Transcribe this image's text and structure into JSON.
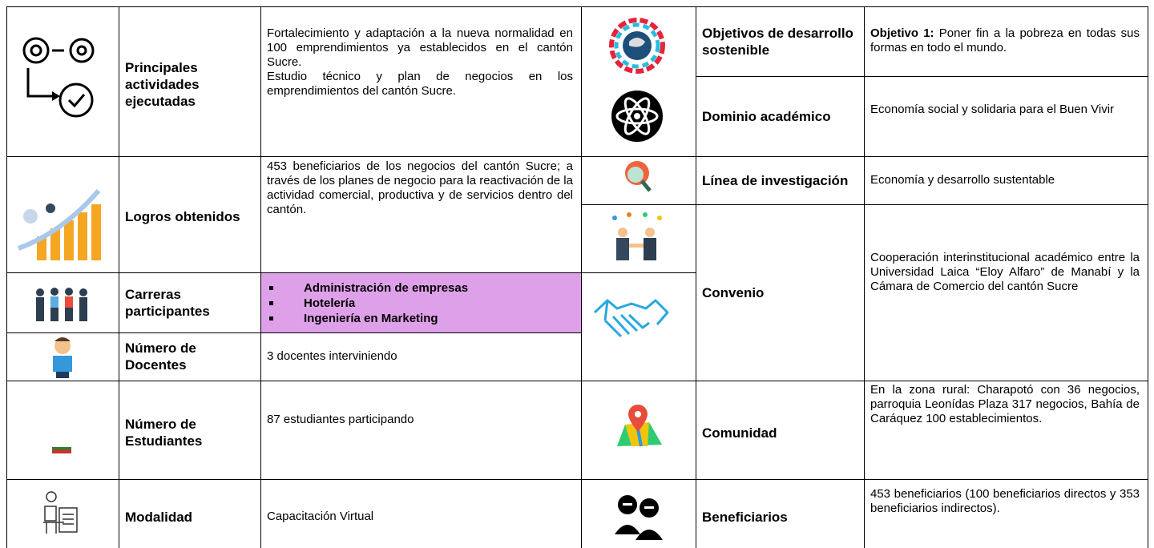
{
  "left_table": {
    "rows": [
      {
        "label": "Principales actividades ejecutadas",
        "content": [
          "Fortalecimiento y adaptación a la nueva normalidad en 100 emprendimientos ya establecidos en el cantón Sucre.",
          "Estudio técnico y plan de negocios en los emprendimientos del cantón Sucre."
        ]
      },
      {
        "label": "Logros obtenidos",
        "content": [
          "453 beneficiarios de los negocios del cantón Sucre; a través de los planes de negocio para la reactivación de la actividad comercial, productiva y de servicios dentro del cantón."
        ]
      },
      {
        "label": "Carreras participantes",
        "items": [
          "Administración de empresas",
          "Hotelería",
          "Ingeniería en Marketing"
        ]
      },
      {
        "label": "Número de Docentes",
        "content": [
          "3 docentes interviniendo"
        ]
      },
      {
        "label": "Número de Estudiantes",
        "content": [
          "87 estudiantes participando"
        ]
      },
      {
        "label": "Modalidad",
        "content": [
          "Capacitación Virtual"
        ]
      }
    ]
  },
  "right_table": {
    "rows": [
      {
        "label": "Objetivos de desarrollo sostenible",
        "content_lead": "Objetivo 1:",
        "content": "Poner fin a la pobreza en todas sus formas en todo el mundo."
      },
      {
        "label": "Dominio académico",
        "content": "Economía social y solidaria para el Buen Vivir"
      },
      {
        "label": "Línea de investigación",
        "content": "Economía y desarrollo sustentable"
      },
      {
        "label": "Convenio",
        "content": "Cooperación interinstitucional académico entre la Universidad Laica “Eloy Alfaro” de Manabí y la Cámara de Comercio del cantón Sucre"
      },
      {
        "label": "Comunidad",
        "content": "En la zona rural: Charapotó con 36 negocios, parroquia Leonídas Plaza 317 negocios, Bahía de Caráquez 100 establecimientos."
      },
      {
        "label": "Beneficiarios",
        "content": "453 beneficiarios (100 beneficiarios directos y 353 beneficiarios indirectos)."
      }
    ]
  }
}
